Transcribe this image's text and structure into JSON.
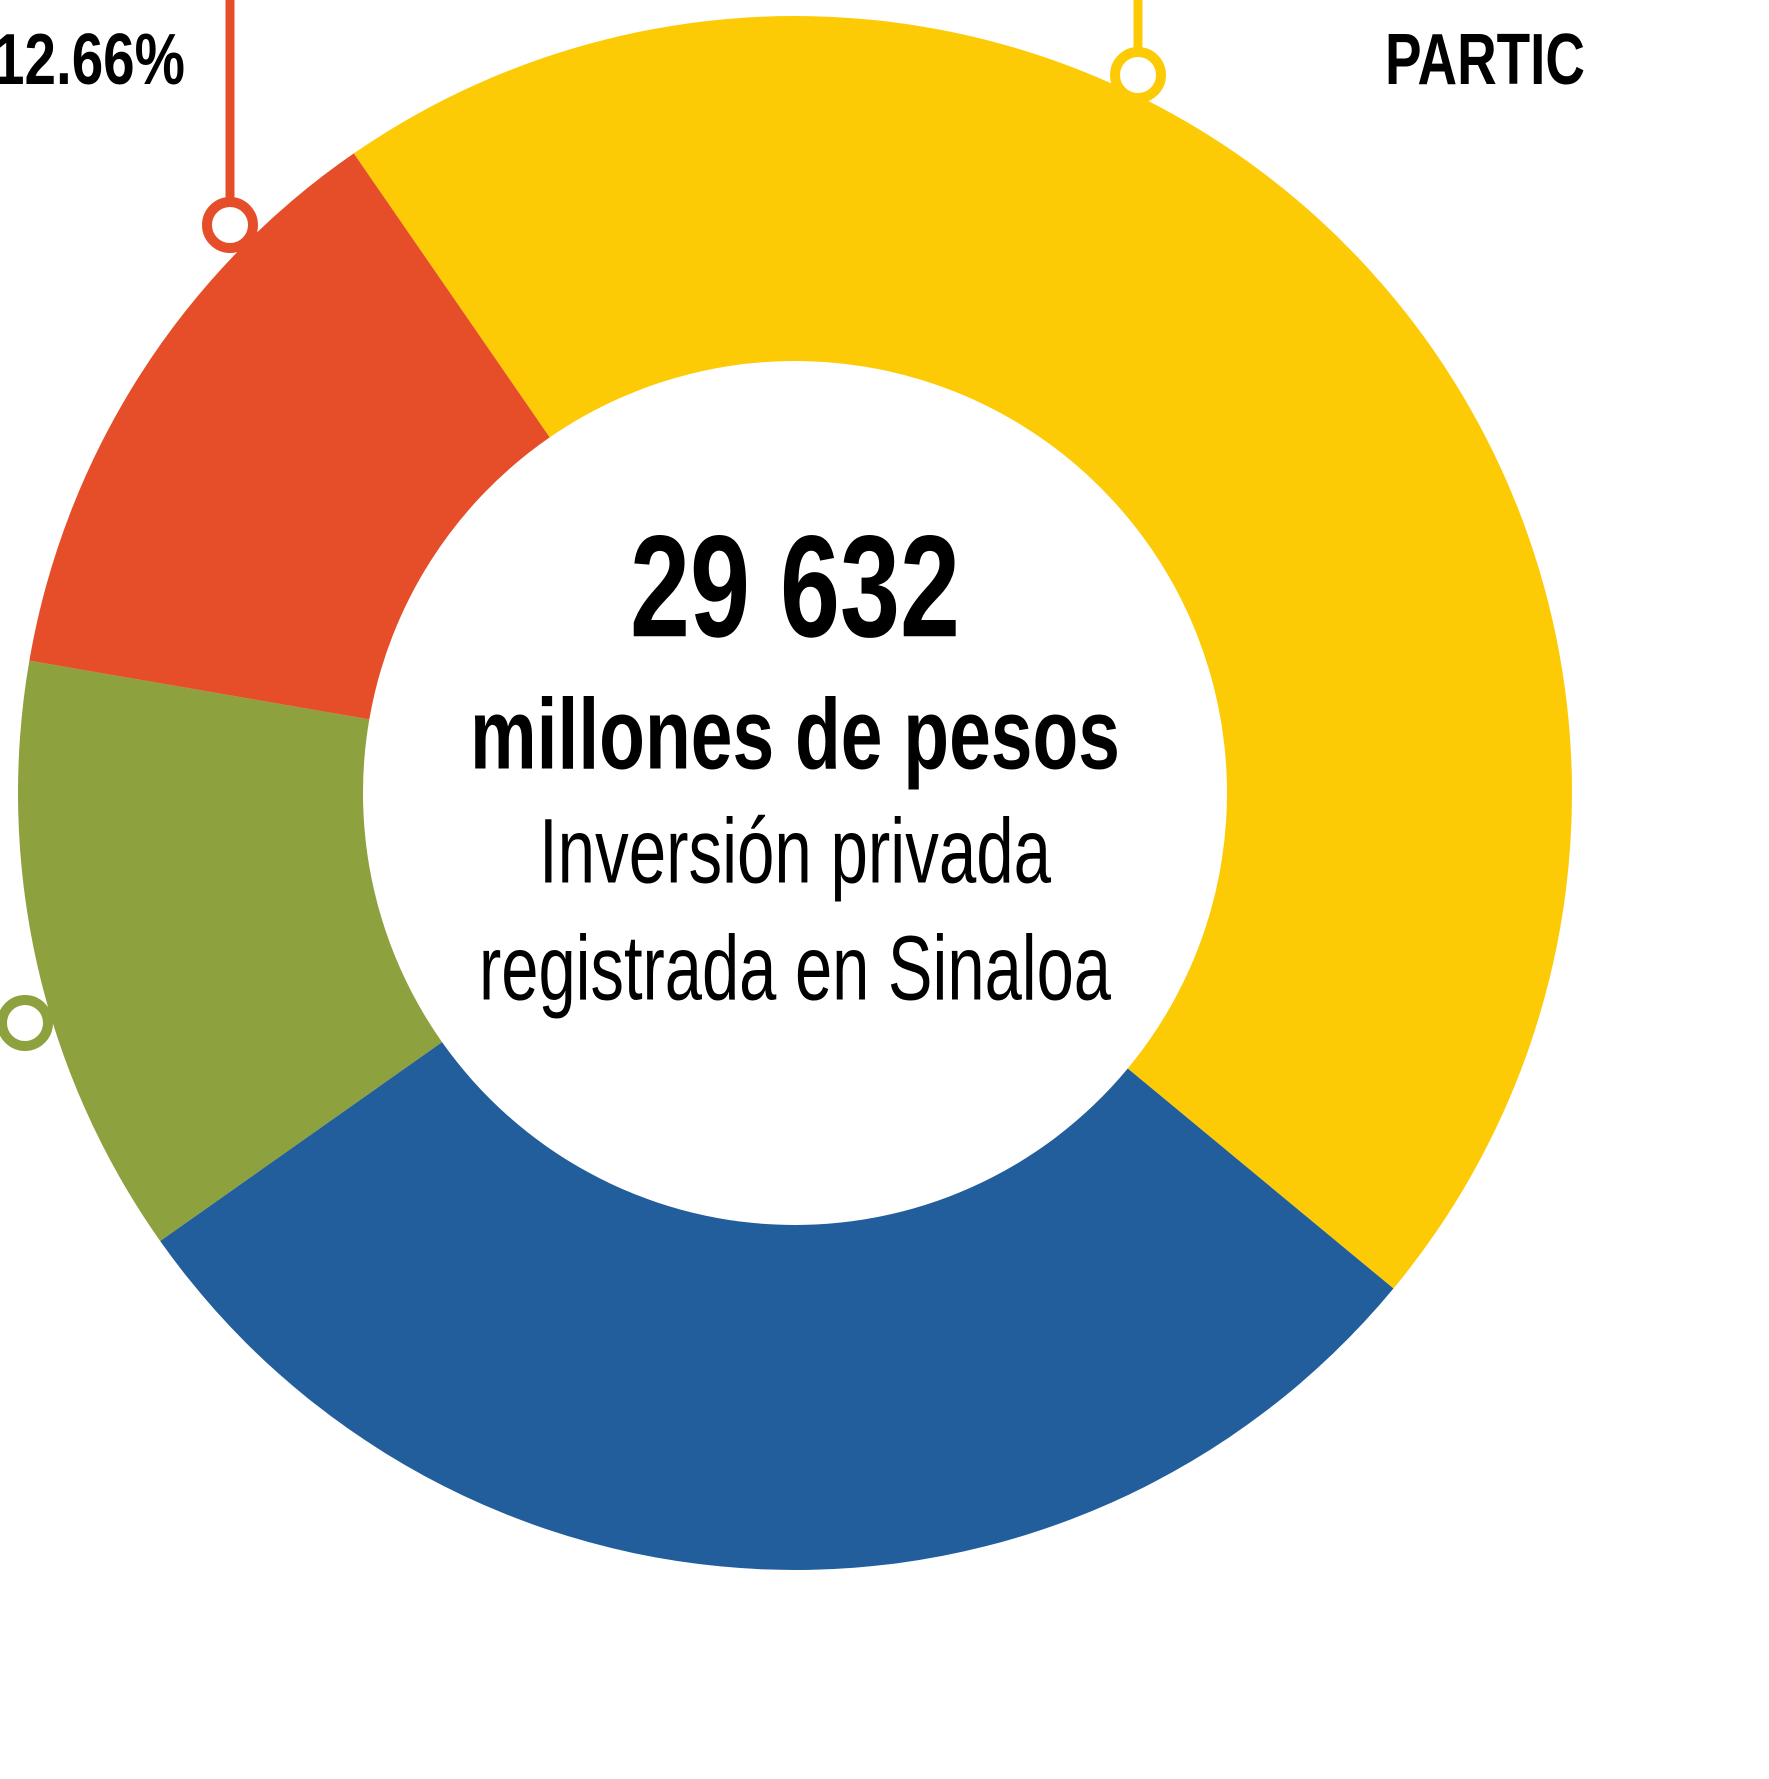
{
  "chart_data": {
    "type": "donut",
    "start_angle": 325.4,
    "center_value": "29 632",
    "center_unit": "millones de pesos",
    "center_caption": [
      "Inversión privada",
      "registrada en Sinaloa"
    ],
    "annotation": "PARTIC",
    "series": [
      {
        "color": "#fccb06",
        "values": [
          45.6
        ]
      },
      {
        "color": "#225e9c",
        "values": [
          29.2
        ]
      },
      {
        "color": "#8ea13f",
        "values": [
          12.5
        ]
      },
      {
        "color": "#e54e29",
        "values": [
          12.66
        ],
        "value_labels": [
          "12.66%"
        ]
      }
    ]
  }
}
